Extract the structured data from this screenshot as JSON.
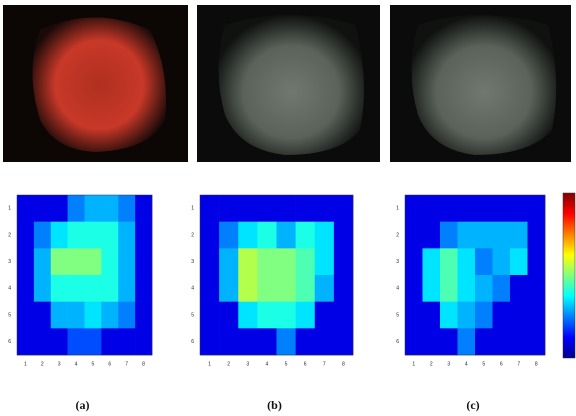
{
  "chart_data": [
    {
      "type": "heatmap",
      "caption": "(a)",
      "colormap": "jet",
      "zlim": [
        0,
        1
      ],
      "x": [
        1,
        2,
        3,
        4,
        5,
        6,
        7,
        8
      ],
      "y": [
        1,
        2,
        3,
        4,
        5,
        6
      ],
      "z": [
        [
          0.1,
          0.1,
          0.1,
          0.25,
          0.3,
          0.3,
          0.25,
          0.1
        ],
        [
          0.1,
          0.25,
          0.35,
          0.4,
          0.4,
          0.4,
          0.3,
          0.1
        ],
        [
          0.1,
          0.3,
          0.5,
          0.5,
          0.5,
          0.4,
          0.3,
          0.1
        ],
        [
          0.1,
          0.3,
          0.4,
          0.4,
          0.4,
          0.4,
          0.3,
          0.1
        ],
        [
          0.1,
          0.1,
          0.3,
          0.3,
          0.35,
          0.3,
          0.25,
          0.1
        ],
        [
          0.1,
          0.1,
          0.1,
          0.2,
          0.2,
          0.1,
          0.1,
          0.1
        ]
      ]
    },
    {
      "type": "heatmap",
      "caption": "(b)",
      "colormap": "jet",
      "zlim": [
        0,
        1
      ],
      "x": [
        1,
        2,
        3,
        4,
        5,
        6,
        7,
        8
      ],
      "y": [
        1,
        2,
        3,
        4,
        5,
        6
      ],
      "z": [
        [
          0.1,
          0.1,
          0.1,
          0.1,
          0.1,
          0.1,
          0.1,
          0.1
        ],
        [
          0.1,
          0.25,
          0.35,
          0.4,
          0.3,
          0.4,
          0.35,
          0.1
        ],
        [
          0.1,
          0.3,
          0.55,
          0.5,
          0.5,
          0.45,
          0.35,
          0.1
        ],
        [
          0.1,
          0.3,
          0.55,
          0.5,
          0.5,
          0.45,
          0.3,
          0.1
        ],
        [
          0.1,
          0.1,
          0.35,
          0.4,
          0.4,
          0.35,
          0.1,
          0.1
        ],
        [
          0.1,
          0.1,
          0.1,
          0.1,
          0.25,
          0.1,
          0.1,
          0.1
        ]
      ]
    },
    {
      "type": "heatmap",
      "caption": "(c)",
      "colormap": "jet",
      "zlim": [
        0,
        1
      ],
      "x": [
        1,
        2,
        3,
        4,
        5,
        6,
        7,
        8
      ],
      "y": [
        1,
        2,
        3,
        4,
        5,
        6
      ],
      "z": [
        [
          0.1,
          0.1,
          0.1,
          0.1,
          0.1,
          0.1,
          0.1,
          0.1
        ],
        [
          0.1,
          0.1,
          0.25,
          0.3,
          0.3,
          0.3,
          0.3,
          0.1
        ],
        [
          0.1,
          0.35,
          0.45,
          0.35,
          0.25,
          0.3,
          0.35,
          0.1
        ],
        [
          0.1,
          0.35,
          0.45,
          0.35,
          0.3,
          0.25,
          0.1,
          0.1
        ],
        [
          0.1,
          0.1,
          0.35,
          0.3,
          0.25,
          0.1,
          0.1,
          0.1
        ],
        [
          0.1,
          0.1,
          0.1,
          0.25,
          0.1,
          0.1,
          0.1,
          0.1
        ]
      ]
    }
  ]
}
